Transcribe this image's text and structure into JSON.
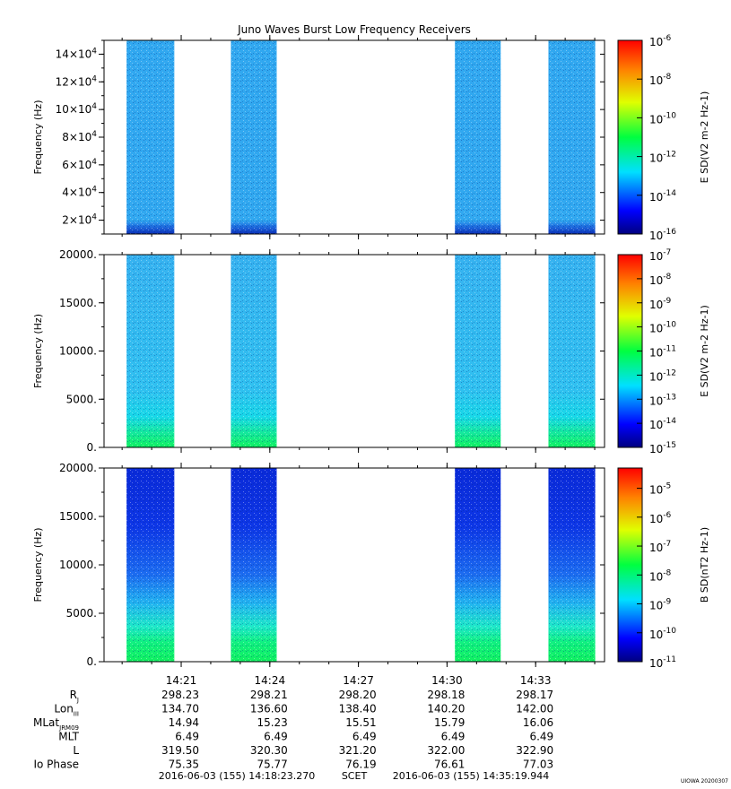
{
  "title": "Juno Waves Burst Low Frequency Receivers",
  "watermark": "UIOWA 20200307",
  "colors": {
    "background": "#ffffff",
    "axis": "#000000"
  },
  "chart_data": [
    {
      "type": "heatmap",
      "ylabel": "Frequency (Hz)",
      "ylim": [
        10000,
        150000
      ],
      "ytick_mantissas": [
        "2",
        "4",
        "6",
        "8",
        "10",
        "12",
        "14"
      ],
      "ytick_values": [
        20000,
        40000,
        60000,
        80000,
        100000,
        120000,
        140000
      ],
      "ytick_suffix": "×10",
      "ytick_exponent": "4",
      "colorbar_label": "E SD(V2 m-2 Hz-1)",
      "colorbar_exponents": [
        "-6",
        "-8",
        "-10",
        "-12",
        "-14",
        "-16"
      ],
      "colorbar_log_range": [
        -16,
        -6
      ],
      "data_blocks": [
        {
          "start": "14:19:09",
          "end": "14:20:46",
          "level_log": -13.8
        },
        {
          "start": "14:22:41",
          "end": "14:24:14",
          "level_log": -13.8
        },
        {
          "start": "14:30:16",
          "end": "14:31:49",
          "level_log": -13.8
        },
        {
          "start": "14:33:26",
          "end": "14:35:01",
          "level_log": -13.8
        }
      ]
    },
    {
      "type": "heatmap",
      "ylabel": "Frequency (Hz)",
      "ylim": [
        0,
        20000
      ],
      "ytick_labels": [
        "20000.",
        "15000.",
        "10000.",
        "5000.",
        "0."
      ],
      "ytick_values": [
        20000,
        15000,
        10000,
        5000,
        0
      ],
      "colorbar_label": "E SD(V2 m-2 Hz-1)",
      "colorbar_exponents": [
        "-7",
        "-8",
        "-9",
        "-10",
        "-11",
        "-12",
        "-13",
        "-14",
        "-15"
      ],
      "colorbar_log_range": [
        -15,
        -7
      ],
      "data_blocks": [
        {
          "start": "14:19:09",
          "end": "14:20:46",
          "level_log": -13.3
        },
        {
          "start": "14:22:41",
          "end": "14:24:14",
          "level_log": -13.3
        },
        {
          "start": "14:30:16",
          "end": "14:31:49",
          "level_log": -13.3
        },
        {
          "start": "14:33:26",
          "end": "14:35:01",
          "level_log": -13.3
        }
      ]
    },
    {
      "type": "heatmap",
      "ylabel": "Frequency (Hz)",
      "ylim": [
        0,
        20000
      ],
      "ytick_labels": [
        "20000.",
        "15000.",
        "10000.",
        "5000.",
        "0."
      ],
      "ytick_values": [
        20000,
        15000,
        10000,
        5000,
        0
      ],
      "colorbar_label": "B SD(nT2 Hz-1)",
      "colorbar_exponents": [
        "-5",
        "-6",
        "-7",
        "-8",
        "-9",
        "-10",
        "-11"
      ],
      "colorbar_log_range": [
        -11,
        -4.3
      ],
      "data_blocks": [
        {
          "start": "14:19:09",
          "end": "14:20:46",
          "level_log": -10.2
        },
        {
          "start": "14:22:41",
          "end": "14:24:14",
          "level_log": -10.2
        },
        {
          "start": "14:30:16",
          "end": "14:31:49",
          "level_log": -10.2
        },
        {
          "start": "14:33:26",
          "end": "14:35:01",
          "level_log": -10.2
        }
      ]
    }
  ],
  "time_axis": {
    "start": "14:18:23.270",
    "end": "14:35:19.944",
    "tick_labels": [
      "14:21",
      "14:24",
      "14:27",
      "14:30",
      "14:33"
    ],
    "tick_times": [
      "14:21:00",
      "14:24:00",
      "14:27:00",
      "14:30:00",
      "14:33:00"
    ]
  },
  "ephemeris": {
    "rows": [
      {
        "label": "R",
        "sub": "J",
        "values": [
          "298.23",
          "298.21",
          "298.20",
          "298.18",
          "298.17"
        ]
      },
      {
        "label": "Lon",
        "sub": "III",
        "values": [
          "134.70",
          "136.60",
          "138.40",
          "140.20",
          "142.00"
        ]
      },
      {
        "label": "MLat",
        "sub": "JRM09",
        "values": [
          "14.94",
          "15.23",
          "15.51",
          "15.79",
          "16.06"
        ]
      },
      {
        "label": "MLT",
        "sub": "",
        "values": [
          "6.49",
          "6.49",
          "6.49",
          "6.49",
          "6.49"
        ]
      },
      {
        "label": "L",
        "sub": "",
        "values": [
          "319.50",
          "320.30",
          "321.20",
          "322.00",
          "322.90"
        ]
      },
      {
        "label": "Io Phase",
        "sub": "",
        "values": [
          "75.35",
          "75.77",
          "76.19",
          "76.61",
          "77.03"
        ]
      }
    ]
  },
  "footer": {
    "start_label": "2016-06-03 (155) 14:18:23.270",
    "mid_label": "SCET",
    "end_label": "2016-06-03 (155) 14:35:19.944"
  }
}
